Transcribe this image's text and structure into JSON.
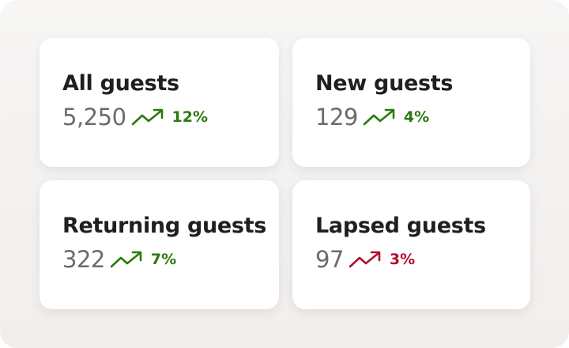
{
  "cards": [
    {
      "title": "All guests",
      "value": "5,250",
      "change": "12%",
      "color": "#2a7a0c"
    },
    {
      "title": "New guests",
      "value": "129",
      "change": "4%",
      "color": "#2a7a0c"
    },
    {
      "title": "Returning guests",
      "value": "322",
      "change": "7%",
      "color": "#2a7a0c"
    },
    {
      "title": "Lapsed guests",
      "value": "97",
      "change": "3%",
      "color": "#b0102c"
    }
  ]
}
